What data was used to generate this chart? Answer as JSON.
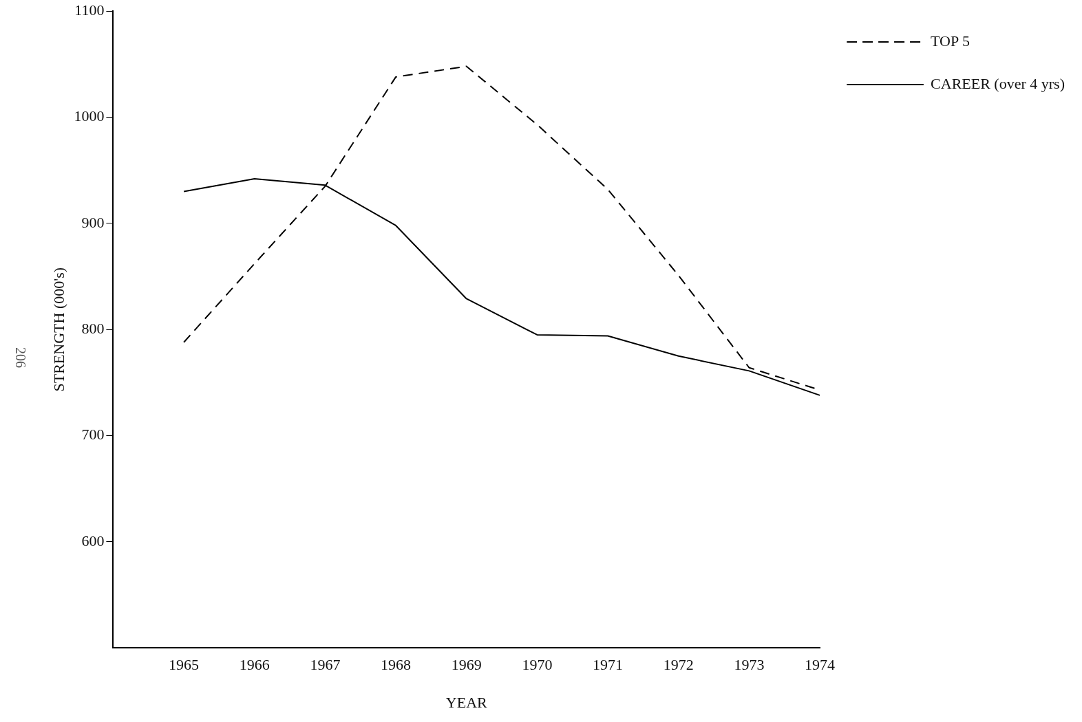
{
  "chart_data": {
    "type": "line",
    "xlabel": "YEAR",
    "ylabel": "STRENGTH (000's)",
    "x": [
      1965,
      1966,
      1967,
      1968,
      1969,
      1970,
      1971,
      1972,
      1973,
      1974
    ],
    "series": [
      {
        "name": "TOP 5",
        "color": "#000000",
        "line_style": "dashed",
        "values": [
          788,
          862,
          935,
          1038,
          1048,
          993,
          932,
          851,
          764,
          743
        ]
      },
      {
        "name": "CAREER (over 4 yrs)",
        "color": "#000000",
        "line_style": "solid",
        "values": [
          930,
          942,
          936,
          898,
          829,
          795,
          794,
          775,
          761,
          738
        ]
      }
    ],
    "xlim": [
      1964,
      1974
    ],
    "xticks": [
      1965,
      1966,
      1967,
      1968,
      1969,
      1970,
      1971,
      1972,
      1973,
      1974
    ],
    "ylim": [
      500,
      1100
    ],
    "yticks": [
      600,
      700,
      800,
      900,
      1000,
      1100
    ],
    "grid": false,
    "legend": "top right",
    "marker": "none",
    "annotations": [
      "206"
    ]
  }
}
